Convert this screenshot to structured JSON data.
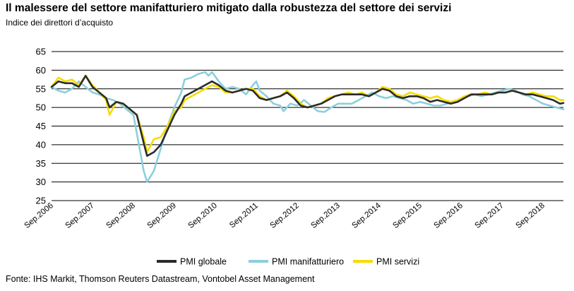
{
  "header": {
    "title": "Il malessere del settore manifatturiero mitigato dalla robustezza del settore dei servizi",
    "subtitle": "Indice dei direttori d’acquisto"
  },
  "footer": {
    "source": "Fonte: IHS Markit, Thomson Reuters Datastream, Vontobel Asset Management"
  },
  "colors": {
    "globale": "#2b2b2b",
    "manifatturiero": "#8ccfdc",
    "servizi": "#f5dc00",
    "grid": "#000000"
  },
  "chart_data": {
    "type": "line",
    "title": "Il malessere del settore manifatturiero mitigato dalla robustezza del settore dei servizi",
    "ylabel": "Indice dei direttori d’acquisto",
    "xlabel": "",
    "ylim": [
      25,
      65
    ],
    "yticks": [
      25,
      30,
      35,
      40,
      45,
      50,
      55,
      60,
      65
    ],
    "xlim": [
      "2006-09",
      "2019-03"
    ],
    "xticks": [
      {
        "date": "2006-09",
        "label": "Sep.2006"
      },
      {
        "date": "2007-09",
        "label": "Sep.2007"
      },
      {
        "date": "2008-09",
        "label": "Sep.2008"
      },
      {
        "date": "2009-09",
        "label": "Sep.2009"
      },
      {
        "date": "2010-09",
        "label": "Sep.2010"
      },
      {
        "date": "2011-09",
        "label": "Sep.2011"
      },
      {
        "date": "2012-09",
        "label": "Sep.2012"
      },
      {
        "date": "2013-09",
        "label": "Sep.2013"
      },
      {
        "date": "2014-09",
        "label": "Sep.2014"
      },
      {
        "date": "2015-09",
        "label": "Sep.2015"
      },
      {
        "date": "2016-09",
        "label": "Sep.2016"
      },
      {
        "date": "2017-09",
        "label": "Sep.2017"
      },
      {
        "date": "2018-09",
        "label": "Sep.2018"
      }
    ],
    "grid": "horizontal",
    "legend_position": "bottom",
    "series": [
      {
        "key": "manifatturiero",
        "name": "PMI manifatturiero",
        "points": [
          [
            "2006-09",
            55.5
          ],
          [
            "2006-11",
            54.5
          ],
          [
            "2007-01",
            54
          ],
          [
            "2007-03",
            55
          ],
          [
            "2007-05",
            57
          ],
          [
            "2007-07",
            55.5
          ],
          [
            "2007-09",
            54
          ],
          [
            "2007-11",
            53.5
          ],
          [
            "2008-01",
            52.5
          ],
          [
            "2008-03",
            52
          ],
          [
            "2008-05",
            51
          ],
          [
            "2008-07",
            49.5
          ],
          [
            "2008-09",
            48
          ],
          [
            "2008-11",
            38
          ],
          [
            "2008-12",
            33
          ],
          [
            "2009-01",
            30
          ],
          [
            "2009-03",
            33
          ],
          [
            "2009-05",
            39
          ],
          [
            "2009-07",
            45
          ],
          [
            "2009-09",
            50
          ],
          [
            "2009-11",
            54
          ],
          [
            "2009-12",
            57.5
          ],
          [
            "2010-02",
            58
          ],
          [
            "2010-04",
            59
          ],
          [
            "2010-06",
            59.5
          ],
          [
            "2010-07",
            58.5
          ],
          [
            "2010-08",
            59.5
          ],
          [
            "2010-10",
            57
          ],
          [
            "2010-12",
            55
          ],
          [
            "2011-02",
            55.5
          ],
          [
            "2011-04",
            55
          ],
          [
            "2011-06",
            53.5
          ],
          [
            "2011-08",
            56
          ],
          [
            "2011-09",
            57
          ],
          [
            "2011-10",
            54.5
          ],
          [
            "2011-12",
            53
          ],
          [
            "2012-02",
            51
          ],
          [
            "2012-04",
            50.5
          ],
          [
            "2012-05",
            49
          ],
          [
            "2012-07",
            51
          ],
          [
            "2012-09",
            50.5
          ],
          [
            "2012-11",
            52
          ],
          [
            "2013-01",
            50.5
          ],
          [
            "2013-03",
            49
          ],
          [
            "2013-05",
            48.8
          ],
          [
            "2013-07",
            50
          ],
          [
            "2013-09",
            51
          ],
          [
            "2013-11",
            51
          ],
          [
            "2014-01",
            51
          ],
          [
            "2014-03",
            52
          ],
          [
            "2014-05",
            53
          ],
          [
            "2014-07",
            54
          ],
          [
            "2014-09",
            53
          ],
          [
            "2014-11",
            52.5
          ],
          [
            "2015-01",
            53
          ],
          [
            "2015-03",
            52.5
          ],
          [
            "2015-05",
            52
          ],
          [
            "2015-07",
            51
          ],
          [
            "2015-09",
            51.5
          ],
          [
            "2015-11",
            51
          ],
          [
            "2016-01",
            50.5
          ],
          [
            "2016-03",
            50.5
          ],
          [
            "2016-05",
            51
          ],
          [
            "2016-07",
            51.5
          ],
          [
            "2016-09",
            52
          ],
          [
            "2016-11",
            53
          ],
          [
            "2017-01",
            53.5
          ],
          [
            "2017-03",
            53
          ],
          [
            "2017-05",
            53.5
          ],
          [
            "2017-07",
            54
          ],
          [
            "2017-09",
            54.5
          ],
          [
            "2017-11",
            55
          ],
          [
            "2018-01",
            54.5
          ],
          [
            "2018-03",
            53.5
          ],
          [
            "2018-05",
            53
          ],
          [
            "2018-07",
            52
          ],
          [
            "2018-09",
            51
          ],
          [
            "2018-11",
            50.5
          ],
          [
            "2019-01",
            50
          ],
          [
            "2019-03",
            49.5
          ]
        ]
      },
      {
        "key": "servizi",
        "name": "PMI servizi",
        "points": [
          [
            "2006-09",
            55.5
          ],
          [
            "2006-11",
            58
          ],
          [
            "2007-01",
            57
          ],
          [
            "2007-03",
            57.5
          ],
          [
            "2007-05",
            56
          ],
          [
            "2007-07",
            58.5
          ],
          [
            "2007-09",
            56
          ],
          [
            "2007-11",
            54
          ],
          [
            "2008-01",
            52
          ],
          [
            "2008-02",
            48
          ],
          [
            "2008-04",
            51.5
          ],
          [
            "2008-06",
            51
          ],
          [
            "2008-08",
            49.5
          ],
          [
            "2008-10",
            48
          ],
          [
            "2008-12",
            42
          ],
          [
            "2009-01",
            38
          ],
          [
            "2009-03",
            41.5
          ],
          [
            "2009-05",
            42
          ],
          [
            "2009-07",
            45
          ],
          [
            "2009-09",
            49
          ],
          [
            "2009-11",
            50
          ],
          [
            "2009-12",
            52
          ],
          [
            "2010-02",
            53
          ],
          [
            "2010-04",
            54
          ],
          [
            "2010-06",
            55
          ],
          [
            "2010-08",
            56
          ],
          [
            "2010-10",
            55.5
          ],
          [
            "2010-12",
            54
          ],
          [
            "2011-02",
            54
          ],
          [
            "2011-04",
            54.5
          ],
          [
            "2011-06",
            55
          ],
          [
            "2011-08",
            55
          ],
          [
            "2011-10",
            53
          ],
          [
            "2011-12",
            52
          ],
          [
            "2012-02",
            52.5
          ],
          [
            "2012-04",
            53
          ],
          [
            "2012-06",
            54.5
          ],
          [
            "2012-08",
            53
          ],
          [
            "2012-10",
            51
          ],
          [
            "2012-12",
            50
          ],
          [
            "2013-02",
            50.5
          ],
          [
            "2013-04",
            51
          ],
          [
            "2013-06",
            52.5
          ],
          [
            "2013-08",
            53
          ],
          [
            "2013-10",
            53.5
          ],
          [
            "2013-12",
            54
          ],
          [
            "2014-02",
            53.5
          ],
          [
            "2014-04",
            54
          ],
          [
            "2014-06",
            53
          ],
          [
            "2014-08",
            54
          ],
          [
            "2014-10",
            55.5
          ],
          [
            "2014-12",
            55
          ],
          [
            "2015-02",
            53.5
          ],
          [
            "2015-04",
            53
          ],
          [
            "2015-06",
            54
          ],
          [
            "2015-08",
            53.5
          ],
          [
            "2015-10",
            53
          ],
          [
            "2015-12",
            52.5
          ],
          [
            "2016-02",
            53
          ],
          [
            "2016-04",
            52
          ],
          [
            "2016-06",
            51.5
          ],
          [
            "2016-08",
            52
          ],
          [
            "2016-10",
            53
          ],
          [
            "2016-12",
            53.5
          ],
          [
            "2017-02",
            53.5
          ],
          [
            "2017-04",
            54
          ],
          [
            "2017-06",
            53.5
          ],
          [
            "2017-08",
            54
          ],
          [
            "2017-10",
            54
          ],
          [
            "2017-12",
            54.5
          ],
          [
            "2018-02",
            54
          ],
          [
            "2018-04",
            53.5
          ],
          [
            "2018-06",
            54
          ],
          [
            "2018-08",
            53.5
          ],
          [
            "2018-10",
            53
          ],
          [
            "2018-12",
            53
          ],
          [
            "2019-02",
            52
          ],
          [
            "2019-03",
            52
          ]
        ]
      },
      {
        "key": "globale",
        "name": "PMI globale",
        "points": [
          [
            "2006-09",
            55.5
          ],
          [
            "2006-11",
            57
          ],
          [
            "2007-01",
            56.5
          ],
          [
            "2007-03",
            56.5
          ],
          [
            "2007-05",
            55.5
          ],
          [
            "2007-07",
            58.5
          ],
          [
            "2007-09",
            55.5
          ],
          [
            "2007-11",
            54
          ],
          [
            "2008-01",
            52.5
          ],
          [
            "2008-02",
            50
          ],
          [
            "2008-04",
            51.5
          ],
          [
            "2008-06",
            51
          ],
          [
            "2008-08",
            49.5
          ],
          [
            "2008-10",
            48
          ],
          [
            "2008-12",
            40.5
          ],
          [
            "2009-01",
            37
          ],
          [
            "2009-03",
            38
          ],
          [
            "2009-05",
            40
          ],
          [
            "2009-07",
            44
          ],
          [
            "2009-09",
            48
          ],
          [
            "2009-11",
            51
          ],
          [
            "2009-12",
            53
          ],
          [
            "2010-02",
            54
          ],
          [
            "2010-04",
            55
          ],
          [
            "2010-06",
            56
          ],
          [
            "2010-08",
            57
          ],
          [
            "2010-10",
            56
          ],
          [
            "2010-12",
            54.5
          ],
          [
            "2011-02",
            54
          ],
          [
            "2011-04",
            54.5
          ],
          [
            "2011-06",
            55
          ],
          [
            "2011-08",
            54.5
          ],
          [
            "2011-10",
            52.5
          ],
          [
            "2011-12",
            52
          ],
          [
            "2012-02",
            52.5
          ],
          [
            "2012-04",
            53
          ],
          [
            "2012-06",
            54
          ],
          [
            "2012-08",
            52.5
          ],
          [
            "2012-10",
            50.5
          ],
          [
            "2012-12",
            50
          ],
          [
            "2013-02",
            50.5
          ],
          [
            "2013-04",
            51
          ],
          [
            "2013-06",
            52
          ],
          [
            "2013-08",
            53
          ],
          [
            "2013-10",
            53.5
          ],
          [
            "2013-12",
            53.5
          ],
          [
            "2014-02",
            53.5
          ],
          [
            "2014-04",
            53.5
          ],
          [
            "2014-06",
            53
          ],
          [
            "2014-08",
            54
          ],
          [
            "2014-10",
            55
          ],
          [
            "2014-12",
            54.5
          ],
          [
            "2015-02",
            53
          ],
          [
            "2015-04",
            52.5
          ],
          [
            "2015-06",
            53
          ],
          [
            "2015-08",
            53
          ],
          [
            "2015-10",
            52.5
          ],
          [
            "2015-12",
            51.5
          ],
          [
            "2016-02",
            52
          ],
          [
            "2016-04",
            51.5
          ],
          [
            "2016-06",
            51
          ],
          [
            "2016-08",
            51.5
          ],
          [
            "2016-10",
            52.5
          ],
          [
            "2016-12",
            53.5
          ],
          [
            "2017-02",
            53.5
          ],
          [
            "2017-04",
            53.5
          ],
          [
            "2017-06",
            53.5
          ],
          [
            "2017-08",
            54
          ],
          [
            "2017-10",
            54
          ],
          [
            "2017-12",
            54.5
          ],
          [
            "2018-02",
            54
          ],
          [
            "2018-04",
            53.5
          ],
          [
            "2018-06",
            53.5
          ],
          [
            "2018-08",
            53
          ],
          [
            "2018-10",
            52.5
          ],
          [
            "2018-12",
            52
          ],
          [
            "2019-02",
            51
          ],
          [
            "2019-03",
            51.2
          ]
        ]
      }
    ],
    "legend": [
      {
        "key": "globale",
        "label": "PMI globale"
      },
      {
        "key": "manifatturiero",
        "label": "PMI manifatturiero"
      },
      {
        "key": "servizi",
        "label": "PMI servizi"
      }
    ]
  }
}
